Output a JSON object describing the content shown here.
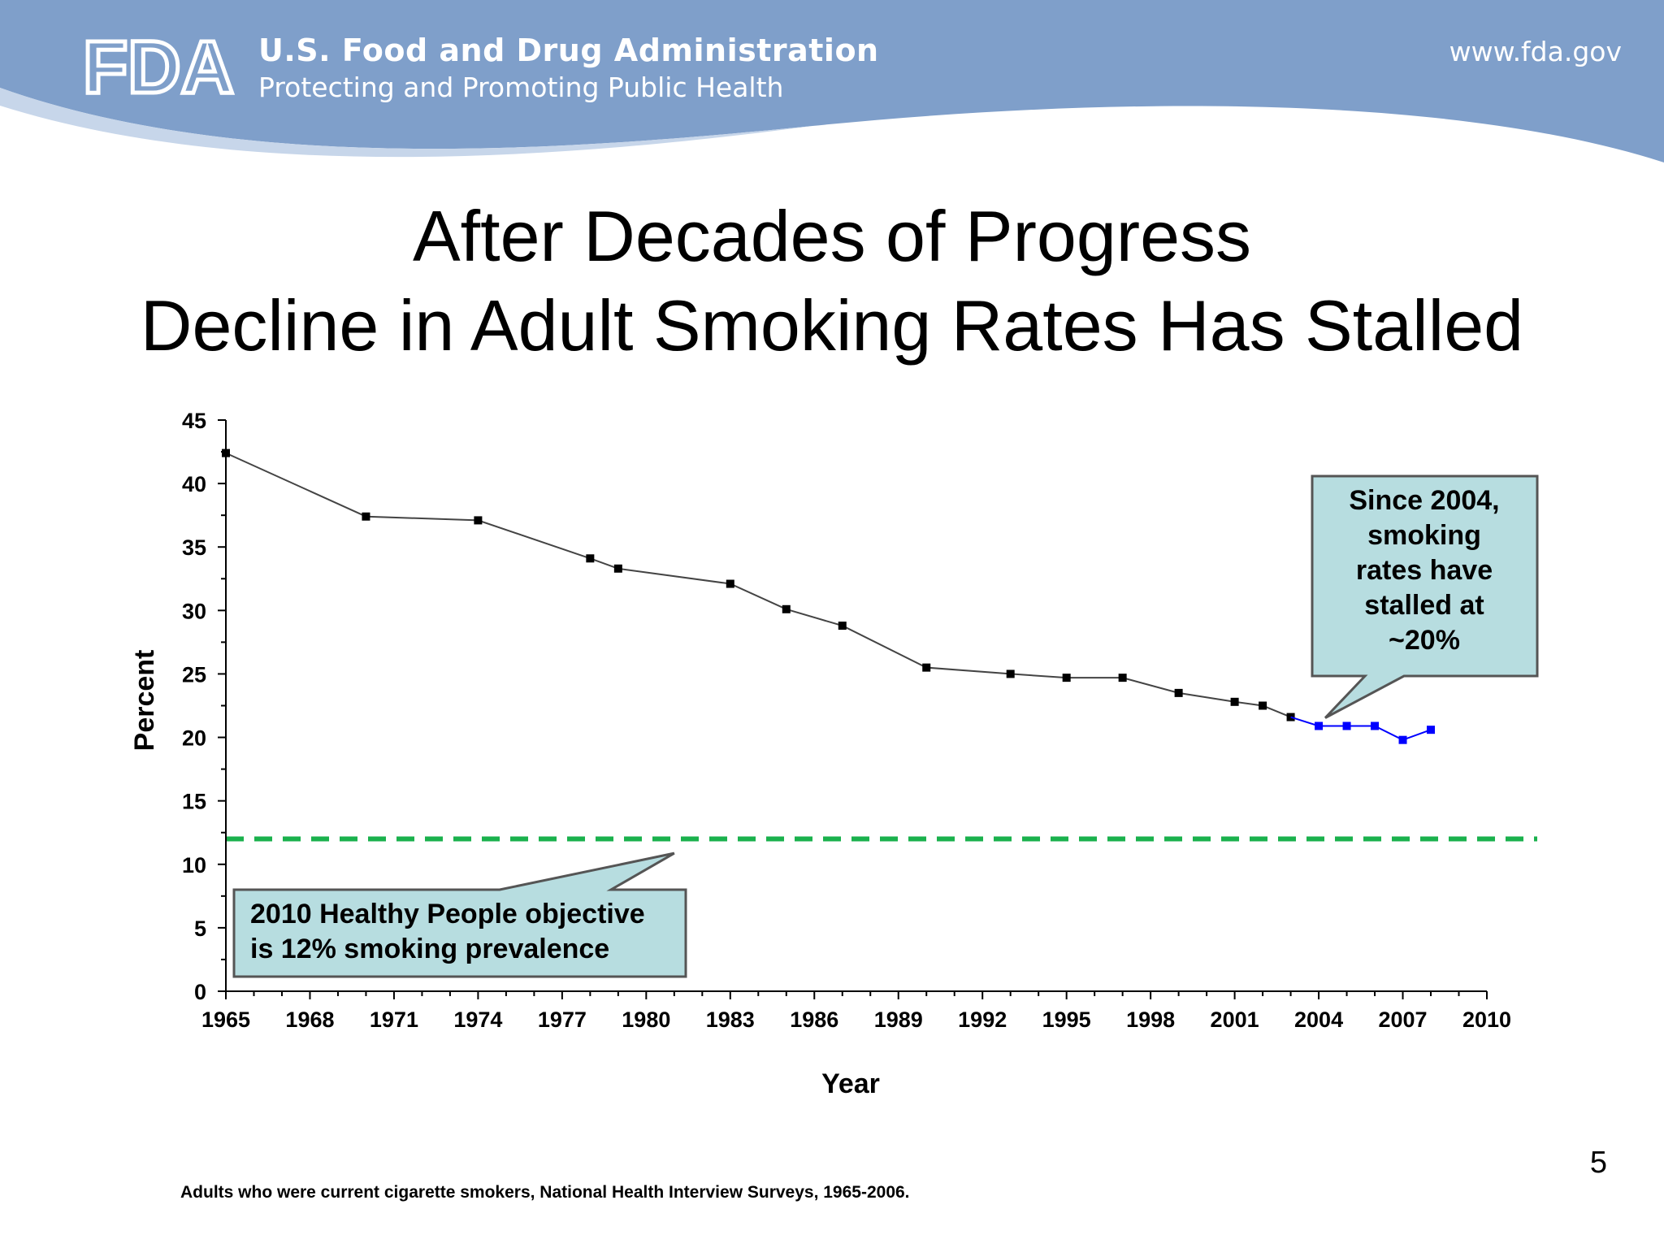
{
  "header": {
    "org_name": "U.S. Food and Drug Administration",
    "tagline": "Protecting and Promoting Public Health",
    "website": "www.fda.gov",
    "logo_text": "FDA",
    "banner_color": "#7f9fca"
  },
  "slide": {
    "title_line1": "After Decades of Progress",
    "title_line2": "Decline in Adult Smoking Rates Has Stalled",
    "page_number": "5",
    "source_note": "Adults who were current cigarette smokers, National Health Interview Surveys, 1965-2006."
  },
  "chart_data": {
    "type": "line",
    "xlabel": "Year",
    "ylabel": "Percent",
    "xlim": [
      1965,
      2010
    ],
    "ylim": [
      0,
      45
    ],
    "x_ticks": [
      "1965",
      "1968",
      "1971",
      "1974",
      "1977",
      "1980",
      "1983",
      "1986",
      "1989",
      "1992",
      "1995",
      "1998",
      "2001",
      "2004",
      "2007",
      "2010"
    ],
    "y_ticks": [
      "0",
      "5",
      "10",
      "15",
      "20",
      "25",
      "30",
      "35",
      "40",
      "45"
    ],
    "grid": false,
    "series": [
      {
        "color": "#000000",
        "points": [
          {
            "x": 1965,
            "y": 42.4
          },
          {
            "x": 1970,
            "y": 37.4
          },
          {
            "x": 1974,
            "y": 37.1
          },
          {
            "x": 1978,
            "y": 34.1
          },
          {
            "x": 1979,
            "y": 33.3
          },
          {
            "x": 1983,
            "y": 32.1
          },
          {
            "x": 1985,
            "y": 30.1
          },
          {
            "x": 1987,
            "y": 28.8
          },
          {
            "x": 1990,
            "y": 25.5
          },
          {
            "x": 1993,
            "y": 25.0
          },
          {
            "x": 1995,
            "y": 24.7
          },
          {
            "x": 1997,
            "y": 24.7
          },
          {
            "x": 1999,
            "y": 23.5
          },
          {
            "x": 2001,
            "y": 22.8
          },
          {
            "x": 2002,
            "y": 22.5
          },
          {
            "x": 2003,
            "y": 21.6
          }
        ]
      },
      {
        "color": "#0000ff",
        "points": [
          {
            "x": 2004,
            "y": 20.9
          },
          {
            "x": 2005,
            "y": 20.9
          },
          {
            "x": 2006,
            "y": 20.9
          },
          {
            "x": 2007,
            "y": 19.8
          },
          {
            "x": 2008,
            "y": 20.6
          }
        ]
      }
    ],
    "reference_line": {
      "y": 12,
      "color": "#1ab14d",
      "style": "dashed"
    },
    "annotations": [
      {
        "lines": [
          "Since 2004,",
          "smoking",
          "rates have",
          "stalled at",
          "~20%"
        ],
        "points_to": {
          "x": 2004,
          "y": 20.9
        }
      },
      {
        "lines": [
          "2010 Healthy People objective",
          "is 12% smoking prevalence"
        ],
        "points_to": {
          "x": 1981,
          "y": 11
        }
      }
    ],
    "callout_fill": "#b7dde0"
  }
}
